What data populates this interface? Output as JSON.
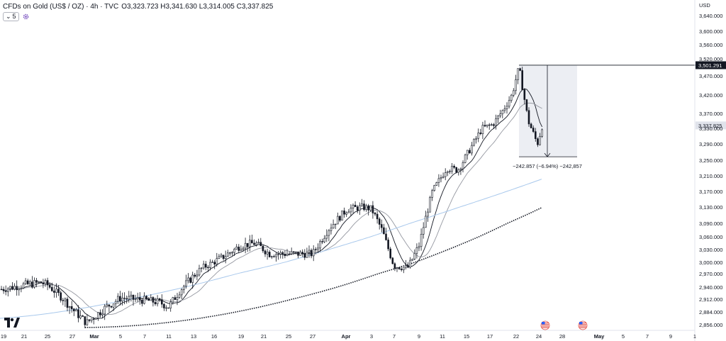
{
  "header": {
    "title": "CFDs on Gold (US$ / OZ) · 4h · TVC",
    "open_label": "O",
    "open": "3,323.723",
    "high_label": "H",
    "high": "3,341.630",
    "low_label": "L",
    "low": "3,314.005",
    "close_label": "C",
    "close": "3,337.825",
    "indicator_count": "5"
  },
  "price_axis": {
    "currency": "USD",
    "labels": [
      "3,640.000",
      "3,600.000",
      "3,560.000",
      "3,520.000",
      "3,470.000",
      "3,420.000",
      "3,370.000",
      "3,330.000",
      "3,290.000",
      "3,250.000",
      "3,210.000",
      "3,170.000",
      "3,130.000",
      "3,090.000",
      "3,060.000",
      "3,030.000",
      "3,000.000",
      "2,970.000",
      "2,940.000",
      "2,912.000",
      "2,884.000",
      "2,856.000"
    ],
    "current_price": "3,337.825",
    "marker_price": "3,501.291"
  },
  "time_axis": {
    "labels": [
      "19",
      "21",
      "25",
      "27",
      "Mar",
      "5",
      "7",
      "11",
      "13",
      "16",
      "19",
      "21",
      "25",
      "27",
      "Apr",
      "3",
      "7",
      "9",
      "11",
      "15",
      "17",
      "22",
      "24",
      "28",
      "May",
      "5",
      "7",
      "9",
      "1"
    ],
    "bold": [
      "Mar",
      "Apr",
      "May"
    ]
  },
  "measure": {
    "label": "−242.857 (−6.94%) −242,857"
  },
  "colors": {
    "candle": "#131722",
    "ma_fast": "#131722",
    "ma_mid": "#9598a1",
    "ma_blue": "#a8c8ec",
    "ma_dotted": "#131722",
    "measure_fill": "#e0e3eb",
    "grid_text": "#131722",
    "flag_red": "#e0463d",
    "flag_blue": "#2962ff"
  },
  "chart_data": {
    "type": "candlestick",
    "symbol": "CFDs on Gold (US$ / OZ)",
    "interval": "4h",
    "y_axis": {
      "label": "USD",
      "range": [
        2840,
        3660
      ]
    },
    "x_axis": {
      "ticks": [
        "19",
        "21",
        "25",
        "27",
        "Mar",
        "5",
        "7",
        "11",
        "13",
        "16",
        "19",
        "21",
        "25",
        "27",
        "Apr",
        "3",
        "7",
        "9",
        "11",
        "15",
        "17",
        "22",
        "24",
        "28",
        "May",
        "5",
        "7",
        "9",
        "1"
      ]
    },
    "price_path": [
      {
        "date": "Feb 19",
        "price": 2935
      },
      {
        "date": "Feb 21",
        "price": 2945
      },
      {
        "date": "Feb 24",
        "price": 2950
      },
      {
        "date": "Feb 25",
        "price": 2945
      },
      {
        "date": "Feb 26",
        "price": 2915
      },
      {
        "date": "Feb 27",
        "price": 2890
      },
      {
        "date": "Feb 28",
        "price": 2860
      },
      {
        "date": "Mar 3",
        "price": 2895
      },
      {
        "date": "Mar 5",
        "price": 2915
      },
      {
        "date": "Mar 7",
        "price": 2910
      },
      {
        "date": "Mar 10",
        "price": 2905
      },
      {
        "date": "Mar 11",
        "price": 2895
      },
      {
        "date": "Mar 12",
        "price": 2935
      },
      {
        "date": "Mar 14",
        "price": 2985
      },
      {
        "date": "Mar 17",
        "price": 3010
      },
      {
        "date": "Mar 19",
        "price": 3040
      },
      {
        "date": "Mar 20",
        "price": 3045
      },
      {
        "date": "Mar 21",
        "price": 3020
      },
      {
        "date": "Mar 25",
        "price": 3020
      },
      {
        "date": "Mar 27",
        "price": 3020
      },
      {
        "date": "Mar 28",
        "price": 3075
      },
      {
        "date": "Mar 31",
        "price": 3125
      },
      {
        "date": "Apr 2",
        "price": 3130
      },
      {
        "date": "Apr 3",
        "price": 3125
      },
      {
        "date": "Apr 4",
        "price": 3070
      },
      {
        "date": "Apr 7",
        "price": 2990
      },
      {
        "date": "Apr 8",
        "price": 2985
      },
      {
        "date": "Apr 9",
        "price": 3040
      },
      {
        "date": "Apr 10",
        "price": 3170
      },
      {
        "date": "Apr 11",
        "price": 3230
      },
      {
        "date": "Apr 14",
        "price": 3225
      },
      {
        "date": "Apr 16",
        "price": 3330
      },
      {
        "date": "Apr 17",
        "price": 3340
      },
      {
        "date": "Apr 18",
        "price": 3380
      },
      {
        "date": "Apr 21",
        "price": 3420
      },
      {
        "date": "Apr 22",
        "price": 3495
      },
      {
        "date": "Apr 23",
        "price": 3350
      },
      {
        "date": "Apr 24",
        "price": 3290
      },
      {
        "date": "Apr 24b",
        "price": 3337.825
      }
    ],
    "moving_averages": [
      {
        "style": "solid dark",
        "last": 3385
      },
      {
        "style": "solid grey",
        "last": 3350
      },
      {
        "style": "solid light blue",
        "last": 3198
      },
      {
        "style": "dotted dark",
        "last": 3128
      }
    ],
    "horizontal_line": {
      "price": 3501.291,
      "label": "3,501.291"
    },
    "measure_tool": {
      "from_price": 3501.291,
      "to_price": 3258.434,
      "label": "−242.857 (−6.94%) −242,857"
    },
    "events": [
      {
        "date": "Apr 24",
        "icon": "us-flag"
      },
      {
        "date": "Apr 30",
        "icon": "us-flag"
      }
    ],
    "last_price": 3337.825
  }
}
